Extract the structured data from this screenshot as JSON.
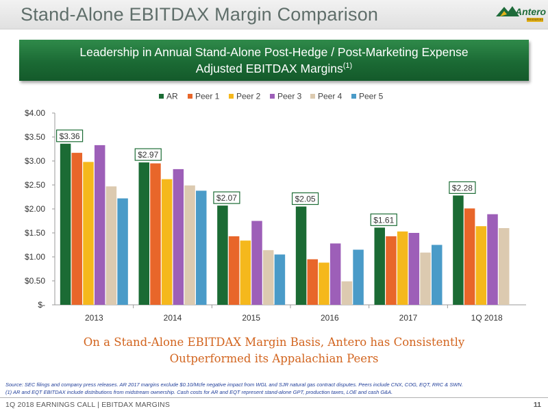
{
  "slide": {
    "title": "Stand-Alone EBITDAX Margin Comparison",
    "banner_line1": "Leadership in Annual Stand-Alone Post-Hedge / Post-Marketing Expense",
    "banner_line2": "Adjusted EBITDAX Margins",
    "banner_note": "(1)",
    "conclusion_line1": "On a Stand-Alone EBITDAX Margin Basis, Antero has Consistently",
    "conclusion_line2": "Outperformed its Appalachian Peers",
    "footnote1": "Source: SEC filings and company press releases.  AR 2017  margins exclude  $0.10/Mcfe negative impact from WGL and SJR natural gas contract  disputes.  Peers include CNX, COG, EQT, RRC & SWN.",
    "footnote2": "(1)     AR and EQT EBITDAX include distributions from midstream ownership. Cash costs for AR and EQT represent stand-alone GPT, production taxes, LOE and cash G&A.",
    "footer_left": "1Q 2018 EARNINGS CALL | EBITDAX MARGINS",
    "page_number": "11"
  },
  "logo": {
    "name": "Antero",
    "sub": "Resources",
    "icon": "mountain-logo-icon",
    "green": "#1e6b3a",
    "yellow": "#e3b21b"
  },
  "chart_data": {
    "type": "bar",
    "categories": [
      "2013",
      "2014",
      "2015",
      "2016",
      "2017",
      "1Q 2018"
    ],
    "series": [
      {
        "name": "AR",
        "color": "#1b6b34",
        "values": [
          3.36,
          2.97,
          2.07,
          2.05,
          1.61,
          2.28
        ]
      },
      {
        "name": "Peer 1",
        "color": "#e8662a",
        "values": [
          3.17,
          2.95,
          1.43,
          0.95,
          1.43,
          2.01
        ]
      },
      {
        "name": "Peer 2",
        "color": "#f5b81c",
        "values": [
          2.98,
          2.62,
          1.34,
          0.88,
          1.53,
          1.64
        ]
      },
      {
        "name": "Peer 3",
        "color": "#9d5fb8",
        "values": [
          3.33,
          2.83,
          1.75,
          1.28,
          1.5,
          1.89
        ]
      },
      {
        "name": "Peer 4",
        "color": "#dccab0",
        "values": [
          2.47,
          2.49,
          1.14,
          0.49,
          1.09,
          1.6
        ]
      },
      {
        "name": "Peer 5",
        "color": "#4a9bc8",
        "values": [
          2.22,
          2.38,
          1.05,
          1.15,
          1.25,
          null
        ]
      }
    ],
    "data_labels": [
      "$3.36",
      "$2.97",
      "$2.07",
      "$2.05",
      "$1.61",
      "$2.28"
    ],
    "ylim": [
      0,
      4.0
    ],
    "yticks": [
      {
        "value": 4.0,
        "label": "$4.00"
      },
      {
        "value": 3.5,
        "label": "$3.50"
      },
      {
        "value": 3.0,
        "label": "$3.00"
      },
      {
        "value": 2.5,
        "label": "$2.50"
      },
      {
        "value": 2.0,
        "label": "$2.00"
      },
      {
        "value": 1.5,
        "label": "$1.50"
      },
      {
        "value": 1.0,
        "label": "$1.00"
      },
      {
        "value": 0.5,
        "label": "$0.50"
      },
      {
        "value": 0.0,
        "label": "$-"
      }
    ],
    "grid": false,
    "legend_position": "top-center"
  }
}
